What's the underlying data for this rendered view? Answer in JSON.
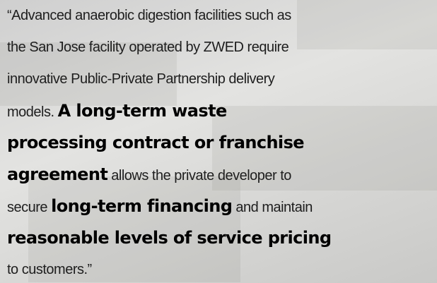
{
  "quote": {
    "lines": [
      {
        "segments": [
          {
            "text": "“Advanced anaerobic digestion facilities such as",
            "bold": false
          }
        ]
      },
      {
        "segments": [
          {
            "text": "the San Jose facility operated by ZWED require",
            "bold": false
          }
        ]
      },
      {
        "segments": [
          {
            "text": "innovative Public-Private Partnership delivery",
            "bold": false
          }
        ]
      },
      {
        "segments": [
          {
            "text": "models. ",
            "bold": false
          },
          {
            "text": "A long-term waste",
            "bold": true
          }
        ]
      },
      {
        "segments": [
          {
            "text": "processing contract or franchise",
            "bold": true
          }
        ]
      },
      {
        "segments": [
          {
            "text": "agreement",
            "bold": true
          },
          {
            "text": " allows the private developer to",
            "bold": false
          }
        ]
      },
      {
        "segments": [
          {
            "text": "secure ",
            "bold": false
          },
          {
            "text": "long-term financing",
            "bold": true
          },
          {
            "text": " and maintain",
            "bold": false
          }
        ]
      },
      {
        "segments": [
          {
            "text": "reasonable levels of service pricing",
            "bold": true
          }
        ]
      },
      {
        "segments": [
          {
            "text": "to customers.”",
            "bold": false
          }
        ]
      }
    ]
  }
}
